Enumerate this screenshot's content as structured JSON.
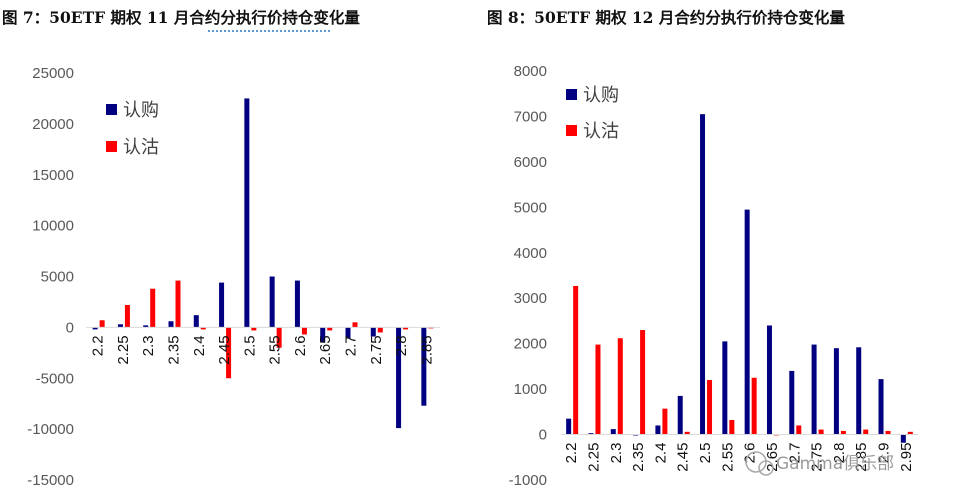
{
  "chart_data": [
    {
      "type": "bar",
      "title": "图 7：50ETF 期权 11 月合约分执行价持仓变化量",
      "categories": [
        "2.2",
        "2.25",
        "2.3",
        "2.35",
        "2.4",
        "2.45",
        "2.5",
        "2.55",
        "2.6",
        "2.65",
        "2.7",
        "2.75",
        "2.8",
        "2.85"
      ],
      "series": [
        {
          "name": "认购",
          "color": "#000080",
          "values": [
            -200,
            300,
            200,
            600,
            1200,
            4400,
            22500,
            5000,
            4600,
            -1400,
            -1100,
            -900,
            -9900,
            -7700
          ]
        },
        {
          "name": "认沽",
          "color": "#ff0000",
          "values": [
            700,
            2200,
            3800,
            4600,
            -200,
            -5000,
            -300,
            -2000,
            -700,
            -300,
            500,
            -500,
            -200,
            -100
          ]
        }
      ],
      "ylim": [
        -15000,
        25000
      ],
      "yticks": [
        "25000",
        "20000",
        "15000",
        "10000",
        "5000",
        "0",
        "-5000",
        "-10000",
        "-15000"
      ],
      "legend_position": "top-left"
    },
    {
      "type": "bar",
      "title": "图 8：50ETF 期权 12 月合约分执行价持仓变化量",
      "categories": [
        "2.2",
        "2.25",
        "2.3",
        "2.35",
        "2.4",
        "2.45",
        "2.5",
        "2.55",
        "2.6",
        "2.65",
        "2.7",
        "2.75",
        "2.8",
        "2.85",
        "2.9",
        "2.95"
      ],
      "series": [
        {
          "name": "认购",
          "color": "#000080",
          "values": [
            350,
            30,
            120,
            -20,
            200,
            850,
            7050,
            2050,
            4950,
            2400,
            1400,
            1980,
            1900,
            1920,
            1220,
            -180
          ]
        },
        {
          "name": "认沽",
          "color": "#ff0000",
          "values": [
            3270,
            1980,
            2120,
            2300,
            570,
            60,
            1200,
            320,
            1250,
            0,
            200,
            110,
            80,
            110,
            80,
            60
          ]
        }
      ],
      "ylim": [
        -1000,
        8000
      ],
      "yticks": [
        "8000",
        "7000",
        "6000",
        "5000",
        "4000",
        "3000",
        "2000",
        "1000",
        "0",
        "-1000"
      ],
      "legend_position": "top-left"
    }
  ],
  "watermark": "Gamma俱乐部"
}
